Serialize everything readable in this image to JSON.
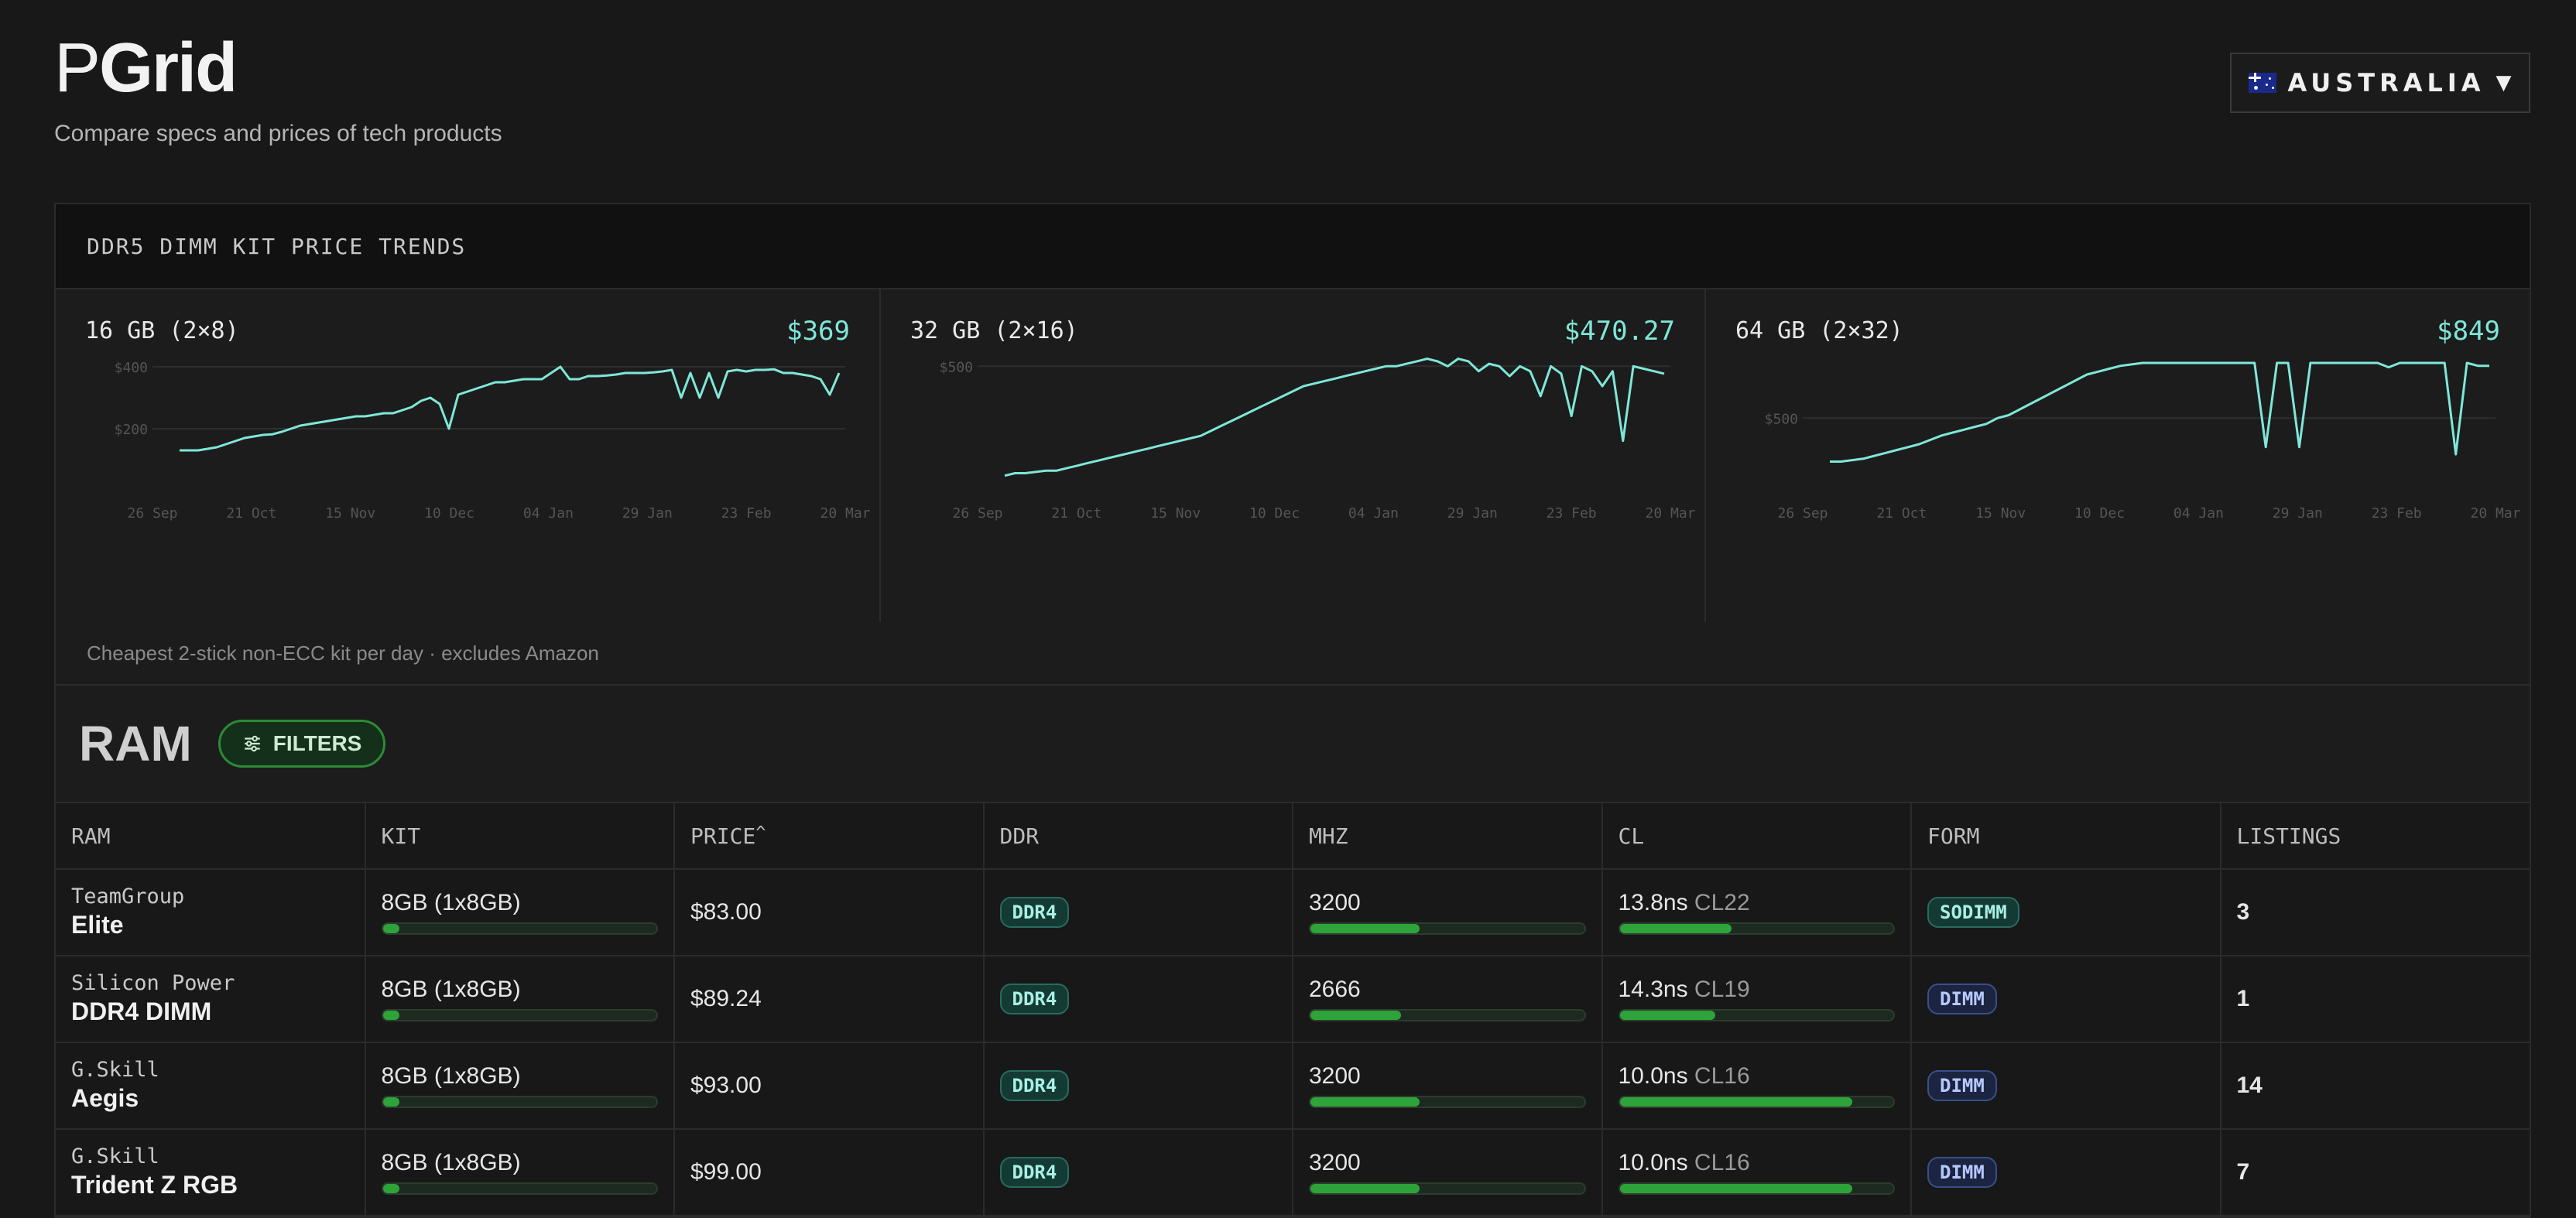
{
  "brand": {
    "logo_p": "P",
    "logo_grid": "Grid",
    "tagline": "Compare specs and prices of tech products"
  },
  "country_selector": {
    "label": "AUSTRALIA",
    "flag": "australia-flag-icon",
    "caret": "▼"
  },
  "trends": {
    "heading": "DDR5 DIMM KIT PRICE TRENDS",
    "footnote": "Cheapest 2-stick non-ECC kit per day · excludes Amazon",
    "x_ticks": [
      "26 Sep",
      "21 Oct",
      "15 Nov",
      "10 Dec",
      "04 Jan",
      "29 Jan",
      "23 Feb",
      "20 Mar"
    ]
  },
  "chart_data": [
    {
      "type": "line",
      "title": "16 GB (2×8)",
      "current_price": "$369",
      "y_ticks": [
        "$400",
        "$200"
      ],
      "ylim": [
        0,
        450
      ],
      "series": [
        {
          "values": [
            130,
            130,
            130,
            135,
            140,
            150,
            160,
            170,
            175,
            180,
            182,
            190,
            200,
            210,
            215,
            220,
            225,
            230,
            235,
            240,
            240,
            245,
            250,
            250,
            260,
            270,
            290,
            300,
            280,
            200,
            310,
            320,
            330,
            340,
            350,
            350,
            355,
            360,
            360,
            360,
            380,
            400,
            360,
            360,
            370,
            370,
            372,
            375,
            380,
            380,
            380,
            382,
            385,
            390,
            300,
            380,
            300,
            380,
            300,
            385,
            390,
            385,
            390,
            390,
            392,
            380,
            380,
            375,
            370,
            360,
            310,
            380
          ]
        }
      ],
      "color": "#7fe7d8"
    },
    {
      "type": "line",
      "title": "32 GB (2×16)",
      "current_price": "$470.27",
      "y_ticks": [
        "$500"
      ],
      "ylim": [
        0,
        560
      ],
      "series": [
        {
          "values": [
            60,
            70,
            70,
            75,
            80,
            80,
            90,
            100,
            110,
            120,
            130,
            140,
            150,
            160,
            170,
            180,
            190,
            200,
            210,
            220,
            240,
            260,
            280,
            300,
            320,
            340,
            360,
            380,
            400,
            420,
            430,
            440,
            450,
            460,
            470,
            480,
            490,
            500,
            500,
            510,
            520,
            530,
            520,
            500,
            530,
            520,
            480,
            510,
            500,
            460,
            500,
            480,
            380,
            500,
            470,
            300,
            500,
            480,
            420,
            480,
            200,
            500,
            490,
            480,
            470
          ]
        }
      ],
      "color": "#7fe7d8"
    },
    {
      "type": "line",
      "title": "64 GB (2×32)",
      "current_price": "$849",
      "y_ticks": [
        "$500"
      ],
      "ylim": [
        0,
        960
      ],
      "series": [
        {
          "values": [
            200,
            200,
            210,
            220,
            240,
            260,
            280,
            300,
            320,
            350,
            380,
            400,
            420,
            440,
            460,
            500,
            520,
            560,
            600,
            640,
            680,
            720,
            760,
            800,
            820,
            840,
            860,
            870,
            880,
            880,
            880,
            880,
            880,
            880,
            880,
            880,
            880,
            880,
            880,
            300,
            880,
            880,
            300,
            880,
            880,
            880,
            880,
            880,
            880,
            880,
            850,
            880,
            880,
            880,
            880,
            880,
            250,
            880,
            860,
            860
          ]
        }
      ],
      "color": "#7fe7d8"
    }
  ],
  "ram": {
    "title": "RAM",
    "filters_label": "FILTERS",
    "columns": [
      "RAM",
      "KIT",
      "PRICE",
      "DDR",
      "MHZ",
      "CL",
      "FORM",
      "LISTINGS"
    ],
    "sort_indicator": "^",
    "rows": [
      {
        "brand": "TeamGroup",
        "model": "Elite",
        "kit": "8GB (1x8GB)",
        "kit_frac": 0.06,
        "price": "$83.00",
        "ddr": "DDR4",
        "mhz": "3200",
        "mhz_frac": 0.4,
        "cl_ns": "13.8ns",
        "cl": "CL22",
        "cl_frac": 0.41,
        "form": "SODIMM",
        "listings": "3"
      },
      {
        "brand": "Silicon Power",
        "model": "DDR4 DIMM",
        "kit": "8GB (1x8GB)",
        "kit_frac": 0.06,
        "price": "$89.24",
        "ddr": "DDR4",
        "mhz": "2666",
        "mhz_frac": 0.33,
        "cl_ns": "14.3ns",
        "cl": "CL19",
        "cl_frac": 0.35,
        "form": "DIMM",
        "listings": "1"
      },
      {
        "brand": "G.Skill",
        "model": "Aegis",
        "kit": "8GB (1x8GB)",
        "kit_frac": 0.06,
        "price": "$93.00",
        "ddr": "DDR4",
        "mhz": "3200",
        "mhz_frac": 0.4,
        "cl_ns": "10.0ns",
        "cl": "CL16",
        "cl_frac": 0.85,
        "form": "DIMM",
        "listings": "14"
      },
      {
        "brand": "G.Skill",
        "model": "Trident Z RGB",
        "kit": "8GB (1x8GB)",
        "kit_frac": 0.06,
        "price": "$99.00",
        "ddr": "DDR4",
        "mhz": "3200",
        "mhz_frac": 0.4,
        "cl_ns": "10.0ns",
        "cl": "CL16",
        "cl_frac": 0.85,
        "form": "DIMM",
        "listings": "7"
      }
    ]
  }
}
